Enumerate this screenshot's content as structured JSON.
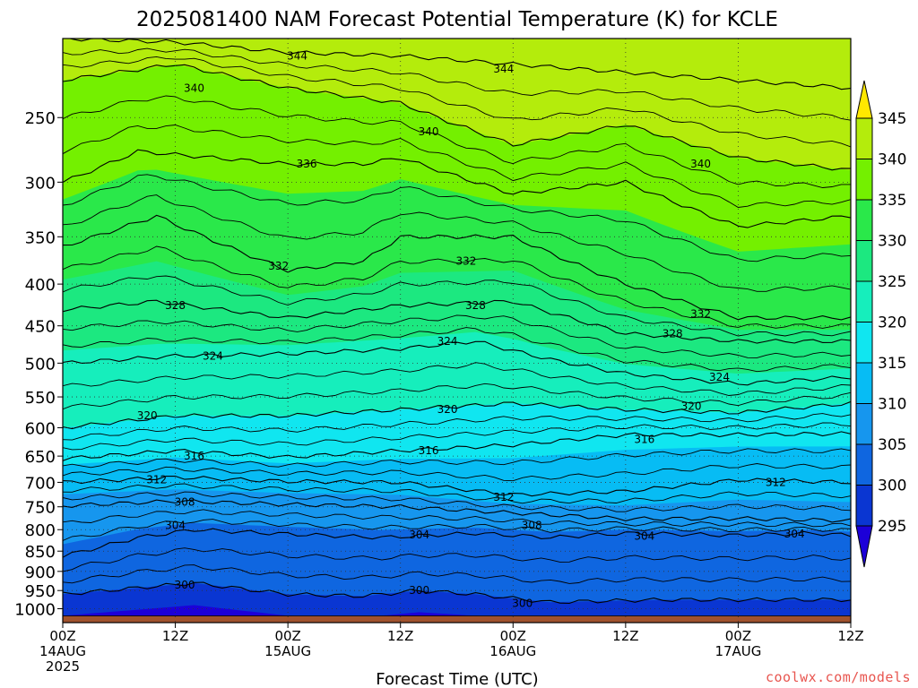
{
  "chart_data": {
    "type": "heatmap",
    "title": "2025081400 NAM Forecast Potential Temperature (K) for KCLE",
    "xlabel": "Forecast Time (UTC)",
    "ylabel": "",
    "y_scale": "log",
    "y_reverse": true,
    "ylim": [
      1040,
      200
    ],
    "xlim": [
      0,
      84
    ],
    "grid": true,
    "x_ticks": [
      {
        "hour": 0,
        "label": "00Z",
        "date": "14AUG",
        "year": "2025"
      },
      {
        "hour": 12,
        "label": "12Z"
      },
      {
        "hour": 24,
        "label": "00Z",
        "date": "15AUG"
      },
      {
        "hour": 36,
        "label": "12Z"
      },
      {
        "hour": 48,
        "label": "00Z",
        "date": "16AUG"
      },
      {
        "hour": 60,
        "label": "12Z"
      },
      {
        "hour": 72,
        "label": "00Z",
        "date": "17AUG"
      },
      {
        "hour": 84,
        "label": "12Z"
      }
    ],
    "y_ticks": [
      250,
      300,
      350,
      400,
      450,
      500,
      550,
      600,
      650,
      700,
      750,
      800,
      850,
      900,
      950,
      1000
    ],
    "colorbar": {
      "levels": [
        295,
        300,
        305,
        310,
        315,
        320,
        325,
        330,
        335,
        340,
        345
      ],
      "labels": [
        "295",
        "300",
        "305",
        "310",
        "315",
        "320",
        "325",
        "330",
        "335",
        "340",
        "345"
      ],
      "colors": [
        "#1c00d8",
        "#0a36d2",
        "#0f66e0",
        "#1696ee",
        "#07bcf4",
        "#10e6f0",
        "#16eebc",
        "#1ce880",
        "#2ae84a",
        "#74f000",
        "#b4ec0c",
        "#ffe800"
      ],
      "extend": "both"
    },
    "ground_color": "#a0522d",
    "series": [
      {
        "theta": 300,
        "label": "300",
        "points": [
          [
            0,
            960
          ],
          [
            14,
            930
          ],
          [
            24,
            960
          ],
          [
            32,
            965
          ],
          [
            38,
            950
          ],
          [
            44,
            960
          ],
          [
            52,
            982
          ],
          [
            58,
            978
          ],
          [
            64,
            975
          ]
        ]
      },
      {
        "theta": 304,
        "label": "304",
        "points": [
          [
            0,
            862
          ],
          [
            8,
            818
          ],
          [
            14,
            800
          ],
          [
            24,
            810
          ],
          [
            34,
            818
          ],
          [
            44,
            808
          ],
          [
            52,
            818
          ],
          [
            60,
            808
          ],
          [
            72,
            813
          ],
          [
            80,
            808
          ],
          [
            84,
            813
          ]
        ]
      },
      {
        "theta": 308,
        "label": "308",
        "points": [
          [
            0,
            748
          ],
          [
            12,
            738
          ],
          [
            24,
            745
          ],
          [
            36,
            750
          ],
          [
            48,
            763
          ],
          [
            60,
            776
          ],
          [
            72,
            775
          ],
          [
            84,
            780
          ]
        ]
      },
      {
        "theta": 312,
        "label": "312",
        "points": [
          [
            0,
            700
          ],
          [
            12,
            690
          ],
          [
            24,
            698
          ],
          [
            36,
            700
          ],
          [
            48,
            725
          ],
          [
            60,
            718
          ],
          [
            72,
            695
          ],
          [
            84,
            700
          ]
        ]
      },
      {
        "theta": 316,
        "label": "316",
        "points": [
          [
            0,
            655
          ],
          [
            12,
            640
          ],
          [
            24,
            652
          ],
          [
            36,
            640
          ],
          [
            48,
            630
          ],
          [
            60,
            612
          ],
          [
            72,
            612
          ],
          [
            84,
            610
          ]
        ]
      },
      {
        "theta": 320,
        "label": "320",
        "points": [
          [
            0,
            600
          ],
          [
            12,
            580
          ],
          [
            24,
            580
          ],
          [
            36,
            570
          ],
          [
            48,
            560
          ],
          [
            60,
            570
          ],
          [
            72,
            575
          ],
          [
            84,
            560
          ]
        ]
      },
      {
        "theta": 324,
        "label": "324",
        "points": [
          [
            0,
            500
          ],
          [
            12,
            490
          ],
          [
            24,
            487
          ],
          [
            36,
            480
          ],
          [
            44,
            470
          ],
          [
            52,
            495
          ],
          [
            60,
            515
          ],
          [
            72,
            530
          ],
          [
            84,
            520
          ]
        ]
      },
      {
        "theta": 328,
        "label": "328",
        "points": [
          [
            0,
            430
          ],
          [
            10,
            420
          ],
          [
            24,
            440
          ],
          [
            36,
            425
          ],
          [
            48,
            420
          ],
          [
            60,
            460
          ],
          [
            72,
            470
          ],
          [
            84,
            470
          ]
        ]
      },
      {
        "theta": 332,
        "label": "332",
        "points": [
          [
            0,
            360
          ],
          [
            10,
            330
          ],
          [
            24,
            385
          ],
          [
            32,
            375
          ],
          [
            36,
            350
          ],
          [
            48,
            350
          ],
          [
            60,
            400
          ],
          [
            72,
            440
          ],
          [
            84,
            440
          ]
        ]
      },
      {
        "theta": 336,
        "label": "336",
        "points": [
          [
            0,
            300
          ],
          [
            8,
            275
          ],
          [
            24,
            285
          ],
          [
            32,
            285
          ],
          [
            36,
            280
          ],
          [
            48,
            310
          ],
          [
            60,
            300
          ],
          [
            72,
            340
          ],
          [
            84,
            330
          ]
        ]
      },
      {
        "theta": 340,
        "label": "340",
        "points": [
          [
            0,
            225
          ],
          [
            12,
            215
          ],
          [
            24,
            230
          ],
          [
            36,
            240
          ],
          [
            48,
            270
          ],
          [
            60,
            255
          ],
          [
            72,
            280
          ],
          [
            84,
            290
          ]
        ]
      },
      {
        "theta": 344,
        "label": "344",
        "points": [
          [
            0,
            200
          ],
          [
            12,
            202
          ],
          [
            24,
            208
          ],
          [
            36,
            210
          ],
          [
            48,
            215
          ],
          [
            60,
            220
          ],
          [
            72,
            225
          ],
          [
            84,
            230
          ]
        ]
      }
    ],
    "contour_labels": [
      {
        "text": "300",
        "hour": 13,
        "p": 935
      },
      {
        "text": "300",
        "hour": 38,
        "p": 950
      },
      {
        "text": "300",
        "hour": 49,
        "p": 985
      },
      {
        "text": "304",
        "hour": 12,
        "p": 790
      },
      {
        "text": "304",
        "hour": 38,
        "p": 812
      },
      {
        "text": "304",
        "hour": 62,
        "p": 815
      },
      {
        "text": "304",
        "hour": 78,
        "p": 810
      },
      {
        "text": "308",
        "hour": 13,
        "p": 740
      },
      {
        "text": "308",
        "hour": 50,
        "p": 790
      },
      {
        "text": "312",
        "hour": 10,
        "p": 695
      },
      {
        "text": "312",
        "hour": 47,
        "p": 730
      },
      {
        "text": "312",
        "hour": 76,
        "p": 700
      },
      {
        "text": "316",
        "hour": 14,
        "p": 650
      },
      {
        "text": "316",
        "hour": 39,
        "p": 640
      },
      {
        "text": "316",
        "hour": 62,
        "p": 620
      },
      {
        "text": "320",
        "hour": 9,
        "p": 580
      },
      {
        "text": "320",
        "hour": 41,
        "p": 570
      },
      {
        "text": "320",
        "hour": 67,
        "p": 565
      },
      {
        "text": "324",
        "hour": 16,
        "p": 490
      },
      {
        "text": "324",
        "hour": 41,
        "p": 470
      },
      {
        "text": "324",
        "hour": 70,
        "p": 520
      },
      {
        "text": "328",
        "hour": 12,
        "p": 425
      },
      {
        "text": "328",
        "hour": 44,
        "p": 425
      },
      {
        "text": "328",
        "hour": 65,
        "p": 460
      },
      {
        "text": "332",
        "hour": 23,
        "p": 380
      },
      {
        "text": "332",
        "hour": 43,
        "p": 375
      },
      {
        "text": "332",
        "hour": 68,
        "p": 435
      },
      {
        "text": "336",
        "hour": 26,
        "p": 285
      },
      {
        "text": "340",
        "hour": 14,
        "p": 230
      },
      {
        "text": "340",
        "hour": 39,
        "p": 260
      },
      {
        "text": "340",
        "hour": 68,
        "p": 285
      },
      {
        "text": "344",
        "hour": 25,
        "p": 210
      },
      {
        "text": "344",
        "hour": 47,
        "p": 218
      }
    ]
  },
  "footer": {
    "credit": "coolwx.com/models"
  }
}
